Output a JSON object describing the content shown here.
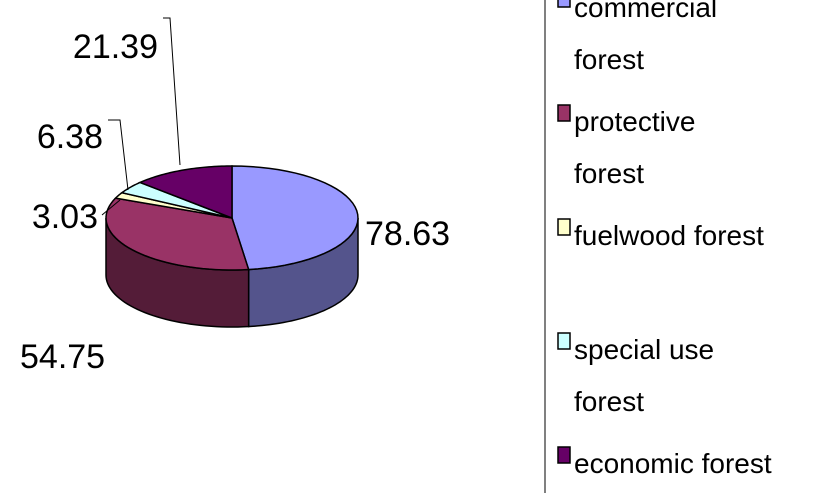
{
  "chart_data": {
    "type": "pie3d",
    "categories": [
      "commercial forest",
      "protective forest",
      "fuelwood forest",
      "special use forest",
      "economic forest"
    ],
    "values": [
      78.63,
      54.75,
      3.03,
      6.38,
      21.39
    ],
    "colors": [
      "#9999ff",
      "#993366",
      "#ffffcc",
      "#ccffff",
      "#660066"
    ],
    "legend": "right"
  }
}
